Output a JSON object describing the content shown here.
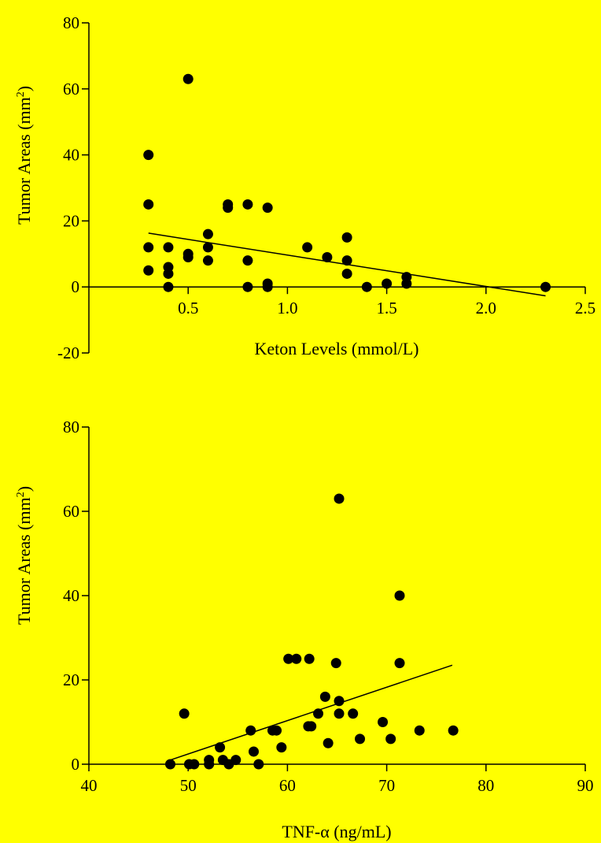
{
  "background_color": "#FFFF00",
  "ink_color": "#000000",
  "chart_data": [
    {
      "type": "scatter",
      "title": "",
      "xlabel": "Keton Levels (mmol/L)",
      "ylabel": "Tumor Areas (mm",
      "ylabel_superscript": "2",
      "ylabel_close": ")",
      "xlim": [
        0,
        2.5
      ],
      "ylim": [
        -20,
        80
      ],
      "xticks": [
        0.5,
        1.0,
        1.5,
        2.0,
        2.5
      ],
      "xtick_labels": [
        "0.5",
        "1.0",
        "1.5",
        "2.0",
        "2.5"
      ],
      "yticks": [
        -20,
        0,
        20,
        40,
        60,
        80
      ],
      "ytick_labels": [
        "-20",
        "0",
        "20",
        "40",
        "60",
        "80"
      ],
      "x_axis_at_y": 0,
      "grid": false,
      "points": [
        {
          "x": 0.3,
          "y": 40
        },
        {
          "x": 0.3,
          "y": 25
        },
        {
          "x": 0.3,
          "y": 12
        },
        {
          "x": 0.3,
          "y": 5
        },
        {
          "x": 0.4,
          "y": 12
        },
        {
          "x": 0.4,
          "y": 6
        },
        {
          "x": 0.4,
          "y": 4
        },
        {
          "x": 0.4,
          "y": 0
        },
        {
          "x": 0.5,
          "y": 63
        },
        {
          "x": 0.5,
          "y": 10
        },
        {
          "x": 0.5,
          "y": 9
        },
        {
          "x": 0.6,
          "y": 16
        },
        {
          "x": 0.6,
          "y": 12
        },
        {
          "x": 0.6,
          "y": 8
        },
        {
          "x": 0.7,
          "y": 25
        },
        {
          "x": 0.7,
          "y": 24
        },
        {
          "x": 0.8,
          "y": 25
        },
        {
          "x": 0.8,
          "y": 8
        },
        {
          "x": 0.8,
          "y": 0
        },
        {
          "x": 0.9,
          "y": 24
        },
        {
          "x": 0.9,
          "y": 1
        },
        {
          "x": 0.9,
          "y": 0
        },
        {
          "x": 1.1,
          "y": 12
        },
        {
          "x": 1.2,
          "y": 9
        },
        {
          "x": 1.3,
          "y": 15
        },
        {
          "x": 1.3,
          "y": 8
        },
        {
          "x": 1.3,
          "y": 4
        },
        {
          "x": 1.4,
          "y": 0
        },
        {
          "x": 1.5,
          "y": 1
        },
        {
          "x": 1.6,
          "y": 3
        },
        {
          "x": 1.6,
          "y": 1
        },
        {
          "x": 2.3,
          "y": 0
        }
      ],
      "fit_line": {
        "x": [
          0.3,
          2.3
        ],
        "y": [
          16.3,
          -2.7
        ]
      }
    },
    {
      "type": "scatter",
      "title": "",
      "xlabel": "TNF-α (ng/mL)",
      "ylabel": "Tumor Areas (mm",
      "ylabel_superscript": "2",
      "ylabel_close": ")",
      "xlim": [
        40,
        90
      ],
      "ylim": [
        0,
        80
      ],
      "xticks": [
        40,
        50,
        60,
        70,
        80,
        90
      ],
      "xtick_labels": [
        "40",
        "50",
        "60",
        "70",
        "80",
        "90"
      ],
      "yticks": [
        0,
        20,
        40,
        60,
        80
      ],
      "ytick_labels": [
        "0",
        "20",
        "40",
        "60",
        "80"
      ],
      "x_axis_at_y": 0,
      "grid": false,
      "points": [
        {
          "x": 48.2,
          "y": 0
        },
        {
          "x": 49.6,
          "y": 12
        },
        {
          "x": 50.1,
          "y": 0
        },
        {
          "x": 50.6,
          "y": 0
        },
        {
          "x": 52.1,
          "y": 1
        },
        {
          "x": 52.1,
          "y": 0
        },
        {
          "x": 53.2,
          "y": 4
        },
        {
          "x": 53.5,
          "y": 1
        },
        {
          "x": 54.1,
          "y": 0
        },
        {
          "x": 54.8,
          "y": 1
        },
        {
          "x": 56.3,
          "y": 8
        },
        {
          "x": 56.6,
          "y": 3
        },
        {
          "x": 57.1,
          "y": 0
        },
        {
          "x": 58.5,
          "y": 8
        },
        {
          "x": 58.9,
          "y": 8
        },
        {
          "x": 59.4,
          "y": 4
        },
        {
          "x": 60.1,
          "y": 25
        },
        {
          "x": 60.9,
          "y": 25
        },
        {
          "x": 62.1,
          "y": 9
        },
        {
          "x": 62.2,
          "y": 25
        },
        {
          "x": 62.4,
          "y": 9
        },
        {
          "x": 63.1,
          "y": 12
        },
        {
          "x": 63.8,
          "y": 16
        },
        {
          "x": 64.1,
          "y": 5
        },
        {
          "x": 64.9,
          "y": 24
        },
        {
          "x": 65.2,
          "y": 63
        },
        {
          "x": 65.2,
          "y": 15
        },
        {
          "x": 65.2,
          "y": 12
        },
        {
          "x": 66.6,
          "y": 12
        },
        {
          "x": 67.3,
          "y": 6
        },
        {
          "x": 69.6,
          "y": 10
        },
        {
          "x": 70.4,
          "y": 6
        },
        {
          "x": 71.3,
          "y": 40
        },
        {
          "x": 71.3,
          "y": 24
        },
        {
          "x": 73.3,
          "y": 8
        },
        {
          "x": 76.7,
          "y": 8
        }
      ],
      "fit_line": {
        "x": [
          48.2,
          76.6
        ],
        "y": [
          1.0,
          23.5
        ]
      }
    }
  ]
}
